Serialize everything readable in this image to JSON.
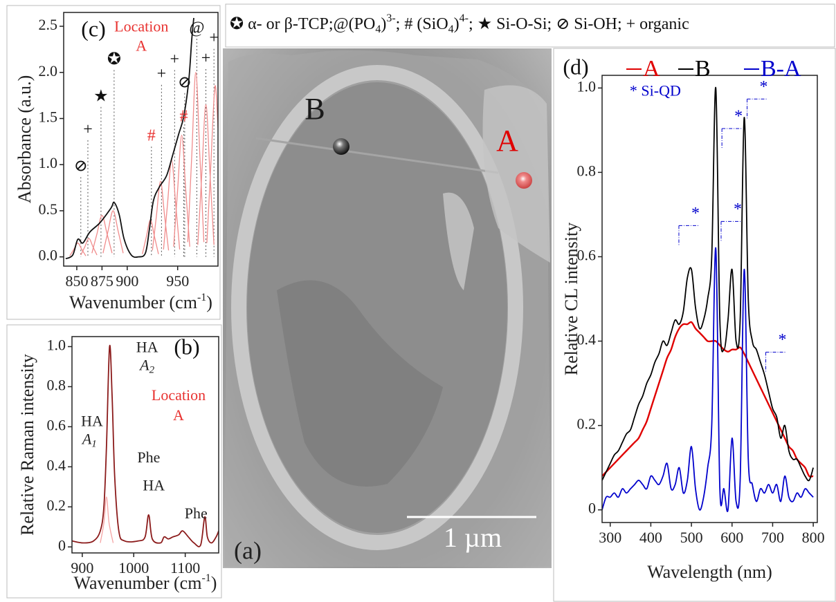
{
  "header": {
    "parts": [
      {
        "text": "✪ α- or β-TCP;@(PO"
      },
      {
        "text": "4",
        "shift": "sub"
      },
      {
        "text": ")"
      },
      {
        "text": "3-",
        "shift": "sup"
      },
      {
        "text": "; # (SiO"
      },
      {
        "text": "4",
        "shift": "sub"
      },
      {
        "text": ")"
      },
      {
        "text": "4-",
        "shift": "sup"
      },
      {
        "text": "; ★ Si-O-Si; ⊘ Si-OH; + organic"
      }
    ]
  },
  "image_panel": {
    "label": "(a)",
    "point_labels": [
      "B",
      "A"
    ],
    "scale_bar": "1 µm"
  },
  "chart_data": [
    {
      "type": "line",
      "panel_label": "(c)",
      "xlabel": {
        "text": "Wavenumber (cm",
        "sup": "-1",
        "tail": ")"
      },
      "ylabel": "Absorbance (a.u.)",
      "xlim": [
        837,
        990
      ],
      "ylim": [
        -0.1,
        2.65
      ],
      "xticks": [
        850,
        875,
        900,
        950
      ],
      "yticks": [
        {
          "value": 0,
          "label": "0.0"
        },
        0.5,
        {
          "value": 1,
          "label": "1.0"
        },
        1.5,
        {
          "value": 2,
          "label": "2.0"
        },
        2.5
      ],
      "drop_lines": true,
      "series": [
        {
          "color": "#f08c8c",
          "x": [
            843,
            847,
            851,
            855,
            859
          ],
          "values": [
            0.01,
            0.08,
            0.15,
            0.08,
            0.01
          ]
        },
        {
          "color": "#f08c8c",
          "x": [
            854,
            858,
            862,
            866,
            870
          ],
          "values": [
            0.02,
            0.11,
            0.2,
            0.11,
            0.02
          ]
        },
        {
          "color": "#f08c8c",
          "x": [
            865,
            870,
            875,
            880,
            885
          ],
          "values": [
            0.04,
            0.25,
            0.45,
            0.25,
            0.04
          ]
        },
        {
          "color": "#f08c8c",
          "x": [
            876,
            881,
            886,
            891,
            896
          ],
          "values": [
            0.04,
            0.28,
            0.5,
            0.28,
            0.04
          ]
        },
        {
          "color": "#f08c8c",
          "x": [
            915,
            919,
            923,
            927,
            931
          ],
          "values": [
            0.03,
            0.22,
            0.4,
            0.22,
            0.03
          ]
        },
        {
          "color": "#f08c8c",
          "x": [
            925,
            929,
            933,
            937,
            941
          ],
          "values": [
            0.07,
            0.45,
            0.82,
            0.45,
            0.07
          ]
        },
        {
          "color": "#f08c8c",
          "x": [
            936,
            940,
            944,
            948,
            952
          ],
          "values": [
            0.08,
            0.58,
            1.05,
            0.58,
            0.08
          ]
        },
        {
          "color": "#f08c8c",
          "x": [
            946,
            950,
            954,
            958,
            962
          ],
          "values": [
            0.11,
            0.73,
            1.32,
            0.73,
            0.11
          ]
        },
        {
          "color": "#f08c8c",
          "x": [
            960,
            964,
            968,
            972,
            976
          ],
          "values": [
            0.16,
            1.1,
            2.0,
            1.1,
            0.16
          ]
        },
        {
          "color": "#f08c8c",
          "x": [
            970,
            974,
            978,
            982,
            986
          ],
          "values": [
            0.13,
            0.91,
            1.65,
            0.91,
            0.13
          ]
        },
        {
          "color": "#f08c8c",
          "x": [
            979,
            983,
            987,
            990
          ],
          "values": [
            0.15,
            1.02,
            1.85,
            1.4
          ]
        },
        {
          "color": "#111111",
          "x": [
            839,
            846,
            851,
            856,
            863,
            873,
            884,
            887,
            892,
            897,
            904,
            911,
            918,
            922,
            926,
            932,
            939,
            945,
            951,
            956,
            961,
            964,
            966
          ],
          "values": [
            -0.02,
            0.02,
            0.19,
            0.15,
            0.27,
            0.37,
            0.53,
            0.59,
            0.46,
            0.19,
            0.02,
            0.0,
            0.04,
            0.3,
            0.61,
            0.76,
            0.88,
            1.1,
            1.33,
            1.52,
            1.91,
            2.36,
            2.59
          ]
        }
      ],
      "annotations": [
        {
          "text": "Location",
          "x": 914,
          "y": 2.48,
          "color": "#e8312f"
        },
        {
          "text": "A",
          "x": 914,
          "y": 2.27,
          "color": "#e8312f"
        }
      ],
      "markers": [
        {
          "text": "⊘",
          "x": 854,
          "y": 0.97
        },
        {
          "text": "+",
          "x": 861,
          "y": 1.37
        },
        {
          "text": "★",
          "x": 874,
          "y": 1.73
        },
        {
          "text": "✪",
          "x": 887,
          "y": 2.13
        },
        {
          "text": "#",
          "x": 924,
          "y": 1.3,
          "color": "#e8312f"
        },
        {
          "text": "+",
          "x": 934,
          "y": 1.97
        },
        {
          "text": "+",
          "x": 947,
          "y": 2.13
        },
        {
          "text": "#",
          "x": 956,
          "y": 1.51,
          "color": "#e8312f"
        },
        {
          "text": "⊘",
          "x": 957,
          "y": 1.88
        },
        {
          "text": "@",
          "x": 969,
          "y": 2.47
        },
        {
          "text": "+",
          "x": 978,
          "y": 2.14
        },
        {
          "text": "+",
          "x": 986,
          "y": 2.36
        }
      ]
    },
    {
      "type": "line",
      "panel_label": "(b)",
      "xlabel": {
        "text": "Wavenumber (cm",
        "sup": "-1",
        "tail": ")"
      },
      "ylabel": "Relative Raman intensity",
      "xlim": [
        880,
        1165
      ],
      "ylim": [
        -0.03,
        1.05
      ],
      "xticks": [
        900,
        1000,
        1100
      ],
      "yticks": [
        0,
        0.2,
        0.4,
        0.6,
        0.8,
        {
          "value": 1,
          "label": "1.0"
        }
      ],
      "series": [
        {
          "color": "#f4a3a3",
          "x": [
            935,
            942,
            947,
            952,
            960
          ],
          "values": [
            0.02,
            0.12,
            0.25,
            0.12,
            0.02
          ]
        },
        {
          "color": "#8b1a1a",
          "x": [
            880,
            902,
            922,
            935,
            942,
            947,
            953,
            958,
            963,
            971,
            982,
            1009,
            1022,
            1029,
            1036,
            1052,
            1059,
            1067,
            1076,
            1087,
            1095,
            1106,
            1117,
            1130,
            1138,
            1143,
            1151,
            1160,
            1165
          ],
          "values": [
            0.03,
            0.02,
            0.03,
            0.08,
            0.2,
            0.5,
            1.0,
            0.75,
            0.35,
            0.08,
            0.03,
            0.03,
            0.05,
            0.16,
            0.04,
            0.02,
            0.05,
            0.04,
            0.05,
            0.06,
            0.08,
            0.05,
            0.02,
            0.01,
            0.15,
            0.05,
            0.02,
            0.05,
            0.08
          ]
        }
      ],
      "annotations": [
        {
          "text": "HA",
          "x": 919,
          "y": 0.62
        },
        {
          "text": "A",
          "sub": "1",
          "italic": true,
          "x": 914,
          "y": 0.53
        },
        {
          "text": "HA",
          "x": 1026,
          "y": 0.99
        },
        {
          "text": "A",
          "sub": "2",
          "italic": true,
          "x": 1026,
          "y": 0.9
        },
        {
          "text": "Phe",
          "x": 1029,
          "y": 0.44
        },
        {
          "text": "HA",
          "x": 1039,
          "y": 0.3
        },
        {
          "text": "Phe",
          "x": 1121,
          "y": 0.16
        },
        {
          "text": "Location",
          "x": 1087,
          "y": 0.75,
          "color": "#e8312f"
        },
        {
          "text": "A",
          "x": 1087,
          "y": 0.65,
          "color": "#e8312f"
        }
      ]
    },
    {
      "type": "line",
      "panel_label": "(d)",
      "xlabel": "Wavelength (nm)",
      "ylabel": "Relative CL intensity",
      "xlim": [
        280,
        810
      ],
      "ylim": [
        -0.03,
        1.03
      ],
      "xticks": [
        300,
        400,
        500,
        600,
        700,
        800
      ],
      "yticks": [
        0,
        0.2,
        0.4,
        0.6,
        0.8,
        {
          "value": 1,
          "label": "1.0"
        }
      ],
      "legend": "top",
      "x": [
        280,
        290,
        300,
        310,
        320,
        330,
        340,
        350,
        360,
        370,
        380,
        390,
        400,
        410,
        420,
        430,
        440,
        450,
        460,
        470,
        480,
        490,
        500,
        510,
        520,
        530,
        540,
        550,
        560,
        570,
        580,
        590,
        600,
        610,
        620,
        630,
        640,
        650,
        660,
        670,
        680,
        690,
        700,
        710,
        720,
        730,
        740,
        750,
        760,
        770,
        780,
        790,
        800
      ],
      "series": [
        {
          "name": "A",
          "color": "#e00000",
          "values": [
            0.08,
            0.09,
            0.1,
            0.11,
            0.12,
            0.13,
            0.14,
            0.15,
            0.16,
            0.17,
            0.19,
            0.21,
            0.24,
            0.27,
            0.3,
            0.33,
            0.36,
            0.38,
            0.41,
            0.43,
            0.44,
            0.44,
            0.445,
            0.43,
            0.42,
            0.41,
            0.4,
            0.4,
            0.4,
            0.39,
            0.38,
            0.375,
            0.38,
            0.38,
            0.385,
            0.37,
            0.35,
            0.33,
            0.31,
            0.29,
            0.27,
            0.25,
            0.23,
            0.21,
            0.19,
            0.17,
            0.15,
            0.14,
            0.12,
            0.11,
            0.1,
            0.08,
            0.08
          ]
        },
        {
          "name": "B",
          "color": "#000000",
          "values": [
            0.07,
            0.09,
            0.11,
            0.13,
            0.14,
            0.16,
            0.18,
            0.19,
            0.22,
            0.25,
            0.27,
            0.3,
            0.32,
            0.35,
            0.37,
            0.4,
            0.39,
            0.42,
            0.45,
            0.44,
            0.47,
            0.55,
            0.57,
            0.48,
            0.43,
            0.45,
            0.5,
            0.6,
            1.0,
            0.45,
            0.38,
            0.45,
            0.57,
            0.4,
            0.45,
            0.93,
            0.5,
            0.4,
            0.38,
            0.35,
            0.32,
            0.28,
            0.24,
            0.22,
            0.17,
            0.2,
            0.14,
            0.12,
            0.12,
            0.1,
            0.08,
            0.07,
            0.1
          ]
        },
        {
          "name": "B-A",
          "color": "#0000cc",
          "values": [
            0.0,
            0.03,
            0.03,
            0.04,
            0.03,
            0.05,
            0.04,
            0.05,
            0.06,
            0.07,
            0.06,
            0.05,
            0.08,
            0.07,
            0.06,
            0.08,
            0.11,
            0.05,
            0.06,
            0.1,
            0.04,
            0.07,
            0.15,
            0.05,
            0.0,
            0.03,
            0.1,
            0.2,
            0.62,
            0.05,
            0.05,
            0.0,
            0.17,
            0.02,
            0.07,
            0.57,
            0.12,
            0.06,
            0.02,
            0.05,
            0.04,
            0.06,
            0.04,
            0.06,
            0.02,
            0.08,
            0.03,
            0.02,
            0.04,
            0.03,
            0.05,
            0.04,
            0.03
          ]
        }
      ],
      "annotations": [
        {
          "text": "* Si-QD",
          "x": 348,
          "y": 0.99,
          "color": "#0000cc",
          "anchor": "start"
        }
      ],
      "markers": [
        {
          "text": "*",
          "x": 510,
          "y": 0.7,
          "color": "#0000cc"
        },
        {
          "text": "*",
          "x": 616,
          "y": 0.93,
          "color": "#0000cc"
        },
        {
          "text": "*",
          "x": 614,
          "y": 0.71,
          "color": "#0000cc"
        },
        {
          "text": "*",
          "x": 678,
          "y": 1.0,
          "color": "#0000cc"
        },
        {
          "text": "*",
          "x": 724,
          "y": 0.4,
          "color": "#0000cc"
        }
      ]
    }
  ]
}
